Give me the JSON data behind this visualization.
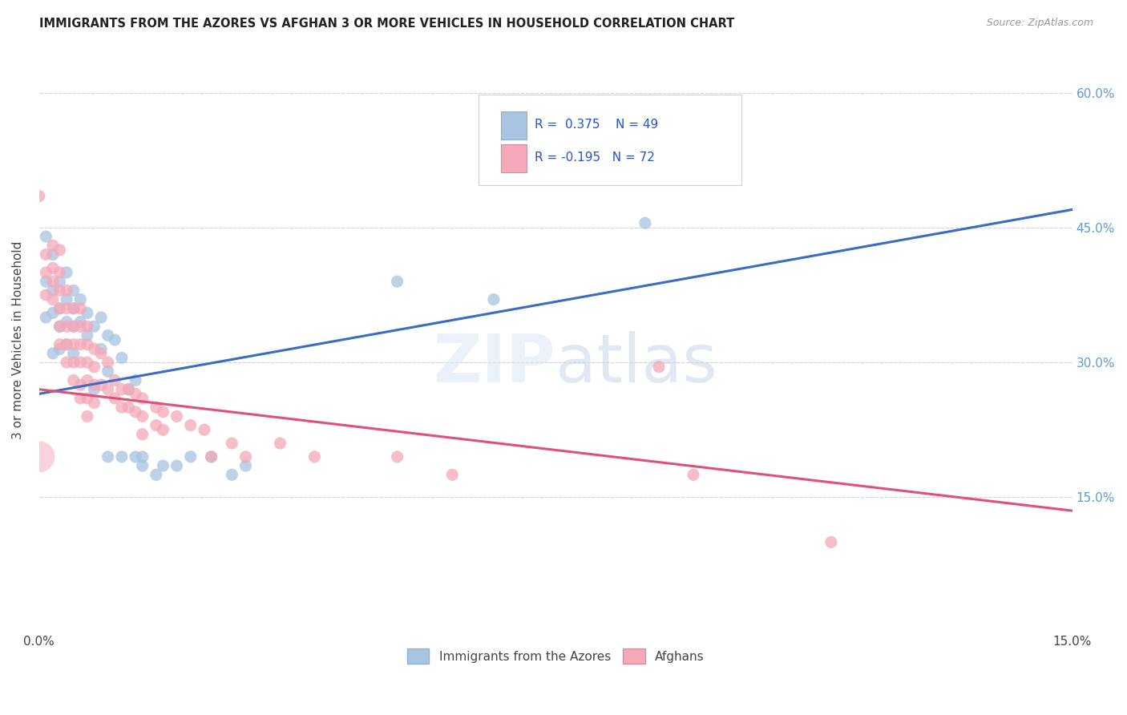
{
  "title": "IMMIGRANTS FROM THE AZORES VS AFGHAN 3 OR MORE VEHICLES IN HOUSEHOLD CORRELATION CHART",
  "source": "Source: ZipAtlas.com",
  "ylabel": "3 or more Vehicles in Household",
  "xlim": [
    0.0,
    0.15
  ],
  "ylim": [
    0.0,
    0.65
  ],
  "xtick_positions": [
    0.0,
    0.05,
    0.1,
    0.15
  ],
  "xtick_labels": [
    "0.0%",
    "",
    "",
    "15.0%"
  ],
  "ytick_positions": [
    0.15,
    0.3,
    0.45,
    0.6
  ],
  "ytick_labels_right": [
    "15.0%",
    "30.0%",
    "45.0%",
    "60.0%"
  ],
  "watermark": "ZIPatlas",
  "legend_labels": [
    "Immigrants from the Azores",
    "Afghans"
  ],
  "azores_color": "#a8c4e0",
  "afghan_color": "#f4a8b8",
  "azores_line_color": "#3b6bc4",
  "afghan_line_color": "#e0507a",
  "R_azores": 0.375,
  "N_azores": 49,
  "R_afghan": -0.195,
  "N_afghan": 72,
  "azores_points": [
    [
      0.001,
      0.44
    ],
    [
      0.001,
      0.39
    ],
    [
      0.001,
      0.35
    ],
    [
      0.002,
      0.42
    ],
    [
      0.002,
      0.38
    ],
    [
      0.002,
      0.355
    ],
    [
      0.002,
      0.31
    ],
    [
      0.003,
      0.39
    ],
    [
      0.003,
      0.36
    ],
    [
      0.003,
      0.34
    ],
    [
      0.003,
      0.315
    ],
    [
      0.004,
      0.4
    ],
    [
      0.004,
      0.37
    ],
    [
      0.004,
      0.345
    ],
    [
      0.004,
      0.32
    ],
    [
      0.005,
      0.38
    ],
    [
      0.005,
      0.36
    ],
    [
      0.005,
      0.34
    ],
    [
      0.005,
      0.31
    ],
    [
      0.006,
      0.37
    ],
    [
      0.006,
      0.345
    ],
    [
      0.007,
      0.355
    ],
    [
      0.007,
      0.33
    ],
    [
      0.008,
      0.34
    ],
    [
      0.008,
      0.27
    ],
    [
      0.009,
      0.35
    ],
    [
      0.009,
      0.315
    ],
    [
      0.01,
      0.33
    ],
    [
      0.01,
      0.29
    ],
    [
      0.01,
      0.195
    ],
    [
      0.011,
      0.325
    ],
    [
      0.012,
      0.305
    ],
    [
      0.012,
      0.195
    ],
    [
      0.013,
      0.27
    ],
    [
      0.014,
      0.28
    ],
    [
      0.014,
      0.195
    ],
    [
      0.015,
      0.195
    ],
    [
      0.015,
      0.185
    ],
    [
      0.017,
      0.175
    ],
    [
      0.018,
      0.185
    ],
    [
      0.02,
      0.185
    ],
    [
      0.022,
      0.195
    ],
    [
      0.025,
      0.195
    ],
    [
      0.028,
      0.175
    ],
    [
      0.03,
      0.185
    ],
    [
      0.052,
      0.39
    ],
    [
      0.066,
      0.37
    ],
    [
      0.074,
      0.56
    ],
    [
      0.088,
      0.455
    ]
  ],
  "afghan_points": [
    [
      0.0,
      0.485
    ],
    [
      0.001,
      0.42
    ],
    [
      0.001,
      0.4
    ],
    [
      0.001,
      0.375
    ],
    [
      0.002,
      0.43
    ],
    [
      0.002,
      0.405
    ],
    [
      0.002,
      0.39
    ],
    [
      0.002,
      0.37
    ],
    [
      0.003,
      0.425
    ],
    [
      0.003,
      0.4
    ],
    [
      0.003,
      0.38
    ],
    [
      0.003,
      0.36
    ],
    [
      0.003,
      0.34
    ],
    [
      0.003,
      0.32
    ],
    [
      0.004,
      0.38
    ],
    [
      0.004,
      0.36
    ],
    [
      0.004,
      0.34
    ],
    [
      0.004,
      0.32
    ],
    [
      0.004,
      0.3
    ],
    [
      0.005,
      0.36
    ],
    [
      0.005,
      0.34
    ],
    [
      0.005,
      0.32
    ],
    [
      0.005,
      0.3
    ],
    [
      0.005,
      0.28
    ],
    [
      0.006,
      0.36
    ],
    [
      0.006,
      0.34
    ],
    [
      0.006,
      0.32
    ],
    [
      0.006,
      0.3
    ],
    [
      0.006,
      0.275
    ],
    [
      0.006,
      0.26
    ],
    [
      0.007,
      0.34
    ],
    [
      0.007,
      0.32
    ],
    [
      0.007,
      0.3
    ],
    [
      0.007,
      0.28
    ],
    [
      0.007,
      0.26
    ],
    [
      0.007,
      0.24
    ],
    [
      0.008,
      0.315
    ],
    [
      0.008,
      0.295
    ],
    [
      0.008,
      0.275
    ],
    [
      0.008,
      0.255
    ],
    [
      0.009,
      0.31
    ],
    [
      0.009,
      0.275
    ],
    [
      0.01,
      0.3
    ],
    [
      0.01,
      0.27
    ],
    [
      0.011,
      0.28
    ],
    [
      0.011,
      0.26
    ],
    [
      0.012,
      0.27
    ],
    [
      0.012,
      0.25
    ],
    [
      0.013,
      0.27
    ],
    [
      0.013,
      0.25
    ],
    [
      0.014,
      0.265
    ],
    [
      0.014,
      0.245
    ],
    [
      0.015,
      0.26
    ],
    [
      0.015,
      0.24
    ],
    [
      0.015,
      0.22
    ],
    [
      0.017,
      0.25
    ],
    [
      0.017,
      0.23
    ],
    [
      0.018,
      0.245
    ],
    [
      0.018,
      0.225
    ],
    [
      0.02,
      0.24
    ],
    [
      0.022,
      0.23
    ],
    [
      0.024,
      0.225
    ],
    [
      0.025,
      0.195
    ],
    [
      0.028,
      0.21
    ],
    [
      0.03,
      0.195
    ],
    [
      0.035,
      0.21
    ],
    [
      0.04,
      0.195
    ],
    [
      0.052,
      0.195
    ],
    [
      0.06,
      0.175
    ],
    [
      0.09,
      0.295
    ],
    [
      0.095,
      0.175
    ],
    [
      0.115,
      0.1
    ]
  ]
}
